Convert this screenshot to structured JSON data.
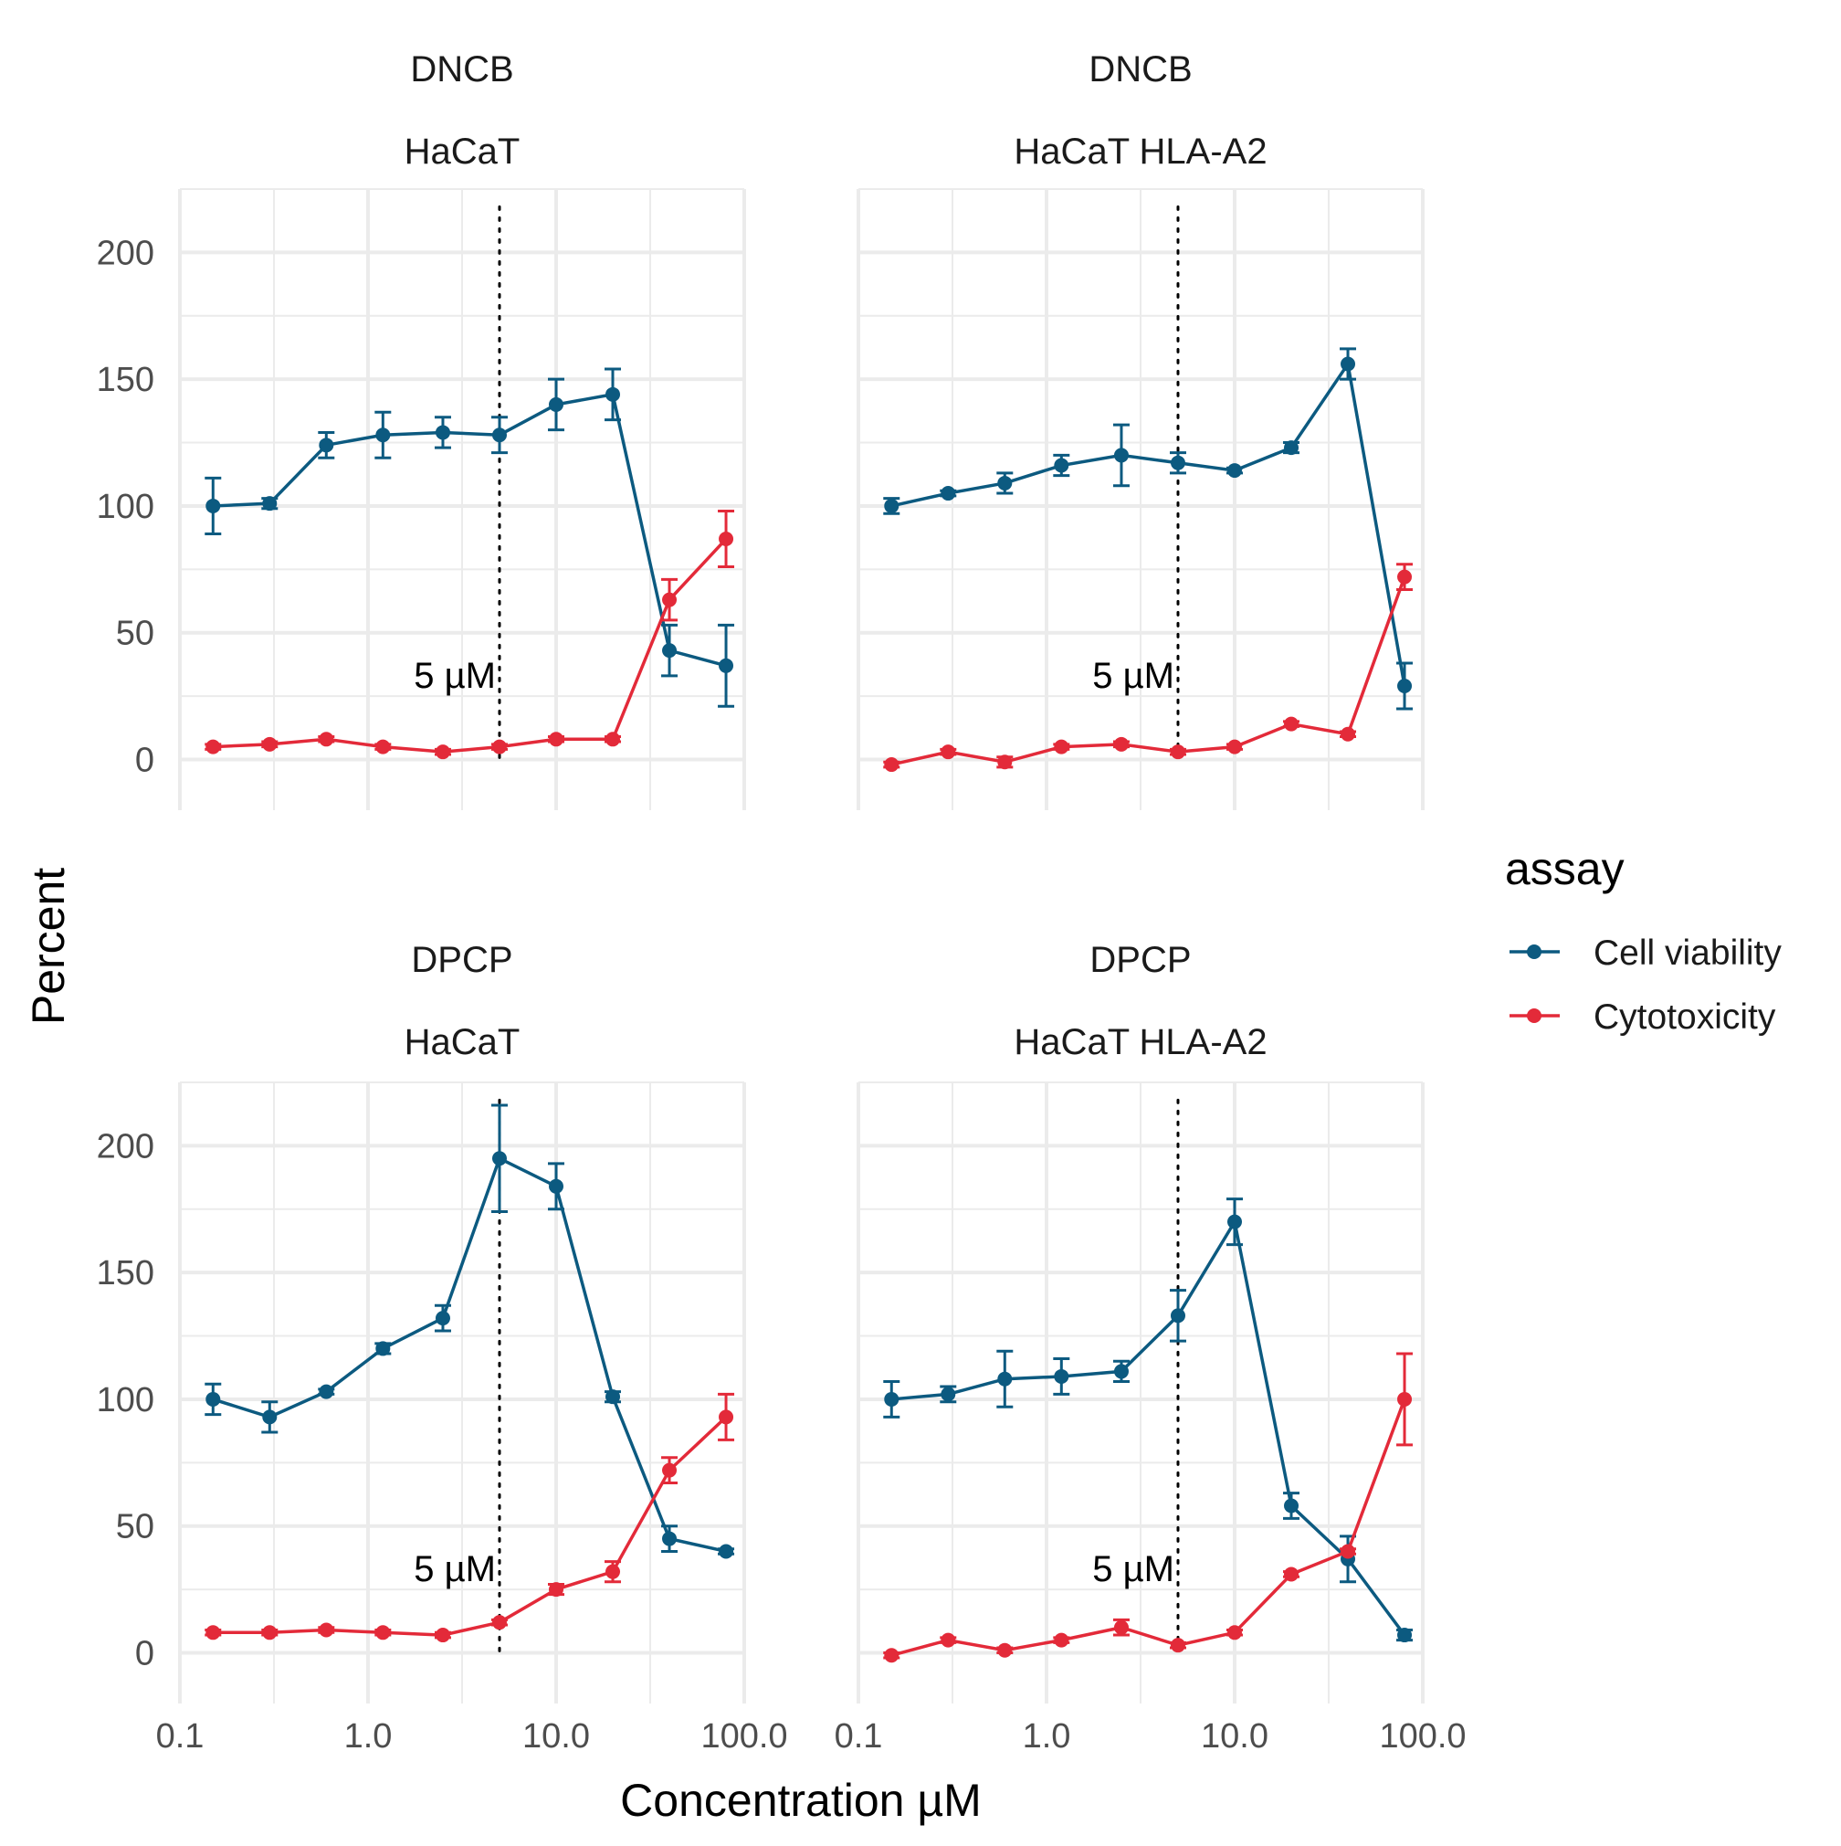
{
  "chart_data": {
    "type": "line",
    "x_scale": "log10",
    "xlim": [
      0.1,
      100
    ],
    "ylim": [
      -20,
      225
    ],
    "x_ticks": [
      0.1,
      1,
      10,
      100
    ],
    "x_tick_labels": [
      "0.1",
      "1.0",
      "10.0",
      "100.0"
    ],
    "y_ticks": [
      0,
      50,
      100,
      150,
      200
    ],
    "y_tick_labels": [
      "0",
      "50",
      "100",
      "150",
      "200"
    ],
    "xlabel": "Concentration µM",
    "ylabel": "Percent",
    "grid": true,
    "legend": {
      "title": "assay",
      "placement": "right",
      "entries": [
        "Cell viability",
        "Cytotoxicity"
      ]
    },
    "colors": {
      "Cell viability": "#0c5a80",
      "Cytotoxicity": "#e32a39"
    },
    "reference_line": {
      "x": 5,
      "label": "5 µM",
      "style": "dotted"
    },
    "x": [
      0.15,
      0.3,
      0.6,
      1.2,
      2.5,
      5,
      10,
      20,
      40,
      80
    ],
    "panels": [
      {
        "strip_top": "DNCB",
        "strip_bottom": "HaCaT",
        "series": [
          {
            "name": "Cell viability",
            "values": [
              100,
              101,
              124,
              128,
              129,
              128,
              140,
              144,
              43,
              37
            ],
            "errors": [
              11,
              2,
              5,
              9,
              6,
              7,
              10,
              10,
              10,
              16
            ]
          },
          {
            "name": "Cytotoxicity",
            "values": [
              5,
              6,
              8,
              5,
              3,
              5,
              8,
              8,
              63,
              87
            ],
            "errors": [
              1,
              1,
              1,
              1,
              1,
              1,
              1,
              1,
              8,
              11
            ]
          }
        ]
      },
      {
        "strip_top": "DNCB",
        "strip_bottom": "HaCaT HLA-A2",
        "series": [
          {
            "name": "Cell viability",
            "values": [
              100,
              105,
              109,
              116,
              120,
              117,
              114,
              123,
              156,
              29
            ],
            "errors": [
              3,
              1,
              4,
              4,
              12,
              4,
              1,
              2,
              6,
              9
            ]
          },
          {
            "name": "Cytotoxicity",
            "values": [
              -2,
              3,
              -1,
              5,
              6,
              3,
              5,
              14,
              10,
              72
            ],
            "errors": [
              1,
              1,
              2,
              1,
              1,
              1,
              1,
              1,
              1,
              5
            ]
          }
        ]
      },
      {
        "strip_top": "DPCP",
        "strip_bottom": "HaCaT",
        "series": [
          {
            "name": "Cell viability",
            "values": [
              100,
              93,
              103,
              120,
              132,
              195,
              184,
              101,
              45,
              40
            ],
            "errors": [
              6,
              6,
              1,
              2,
              5,
              21,
              9,
              2,
              5,
              1
            ]
          },
          {
            "name": "Cytotoxicity",
            "values": [
              8,
              8,
              9,
              8,
              7,
              12,
              25,
              32,
              72,
              93
            ],
            "errors": [
              1,
              1,
              1,
              1,
              1,
              1,
              2,
              4,
              5,
              9
            ]
          }
        ]
      },
      {
        "strip_top": "DPCP",
        "strip_bottom": "HaCaT HLA-A2",
        "series": [
          {
            "name": "Cell viability",
            "values": [
              100,
              102,
              108,
              109,
              111,
              133,
              170,
              58,
              37,
              7
            ],
            "errors": [
              7,
              3,
              11,
              7,
              4,
              10,
              9,
              5,
              9,
              2
            ]
          },
          {
            "name": "Cytotoxicity",
            "values": [
              -1,
              5,
              1,
              5,
              10,
              3,
              8,
              31,
              40,
              100
            ],
            "errors": [
              1,
              1,
              1,
              1,
              3,
              1,
              1,
              1,
              1,
              18
            ]
          }
        ]
      }
    ]
  }
}
